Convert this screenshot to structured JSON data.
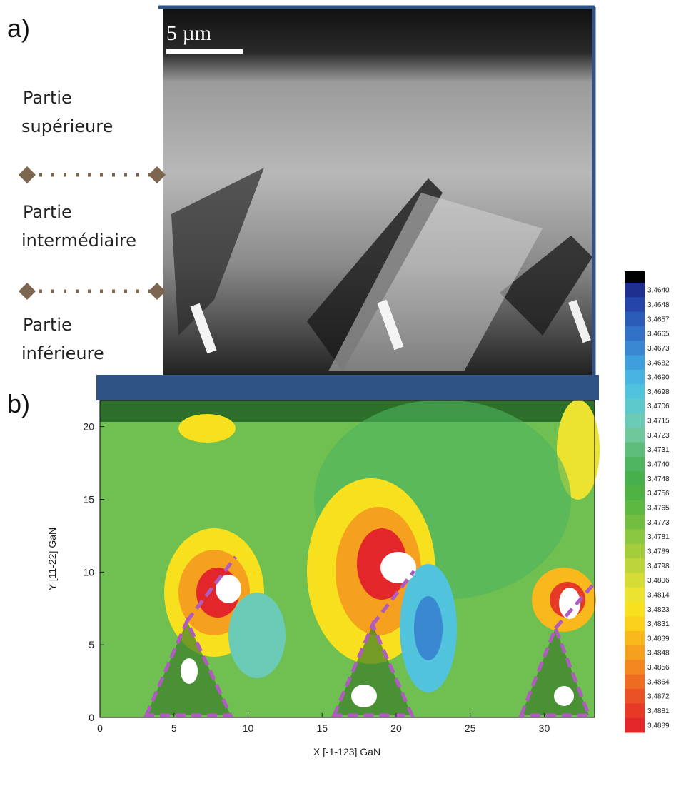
{
  "panel_a": {
    "label": "a)",
    "scale_bar": "5 µm",
    "regions": [
      [
        "Partie",
        "supérieure"
      ],
      [
        "Partie",
        "intermédiaire"
      ],
      [
        "Partie",
        "inférieure"
      ]
    ]
  },
  "panel_b": {
    "label": "b)"
  },
  "chart_data": {
    "type": "contour",
    "xlabel": "X [-1-123] GaN",
    "ylabel": "Y [11-22] GaN",
    "xlim": [
      0,
      33.4
    ],
    "ylim": [
      0,
      21.8
    ],
    "xticks": [
      0,
      5,
      10,
      15,
      20,
      25,
      30
    ],
    "yticks": [
      0,
      5,
      10,
      15,
      20
    ],
    "colorbar": {
      "ticks": [
        {
          "value": 3.464,
          "label": "3,4640"
        },
        {
          "value": 3.4648,
          "label": "3,4648"
        },
        {
          "value": 3.4657,
          "label": "3,4657"
        },
        {
          "value": 3.4665,
          "label": "3,4665"
        },
        {
          "value": 3.4673,
          "label": "3,4673"
        },
        {
          "value": 3.4682,
          "label": "3,4682"
        },
        {
          "value": 3.469,
          "label": "3,4690"
        },
        {
          "value": 3.4698,
          "label": "3,4698"
        },
        {
          "value": 3.4706,
          "label": "3,4706"
        },
        {
          "value": 3.4715,
          "label": "3,4715"
        },
        {
          "value": 3.4723,
          "label": "3,4723"
        },
        {
          "value": 3.4731,
          "label": "3,4731"
        },
        {
          "value": 3.474,
          "label": "3,4740"
        },
        {
          "value": 3.4748,
          "label": "3,4748"
        },
        {
          "value": 3.4756,
          "label": "3,4756"
        },
        {
          "value": 3.4765,
          "label": "3,4765"
        },
        {
          "value": 3.4773,
          "label": "3,4773"
        },
        {
          "value": 3.4781,
          "label": "3,4781"
        },
        {
          "value": 3.4789,
          "label": "3,4789"
        },
        {
          "value": 3.4798,
          "label": "3,4798"
        },
        {
          "value": 3.4806,
          "label": "3,4806"
        },
        {
          "value": 3.4814,
          "label": "3,4814"
        },
        {
          "value": 3.4823,
          "label": "3,4823"
        },
        {
          "value": 3.4831,
          "label": "3,4831"
        },
        {
          "value": 3.4839,
          "label": "3,4839"
        },
        {
          "value": 3.4848,
          "label": "3,4848"
        },
        {
          "value": 3.4856,
          "label": "3,4856"
        },
        {
          "value": 3.4864,
          "label": "3,4864"
        },
        {
          "value": 3.4872,
          "label": "3,4872"
        },
        {
          "value": 3.4881,
          "label": "3,4881"
        },
        {
          "value": 3.4889,
          "label": "3,4889"
        }
      ],
      "colors": [
        "#1f2f8f",
        "#2546a8",
        "#2b5cb8",
        "#3272c6",
        "#3a88d2",
        "#3f9fdc",
        "#47b4e2",
        "#52c3dc",
        "#5ec9cc",
        "#6ccbb7",
        "#6fc79c",
        "#5fbd7c",
        "#4fb45f",
        "#48b04a",
        "#4fb343",
        "#5db842",
        "#72be41",
        "#8bc63f",
        "#a4cd3c",
        "#bdd43a",
        "#d6dc36",
        "#ece230",
        "#f7e11f",
        "#fbd01a",
        "#f9b81c",
        "#f6a01f",
        "#f2871f",
        "#ee6c22",
        "#ea5124",
        "#e63a27",
        "#e2262a"
      ]
    }
  }
}
